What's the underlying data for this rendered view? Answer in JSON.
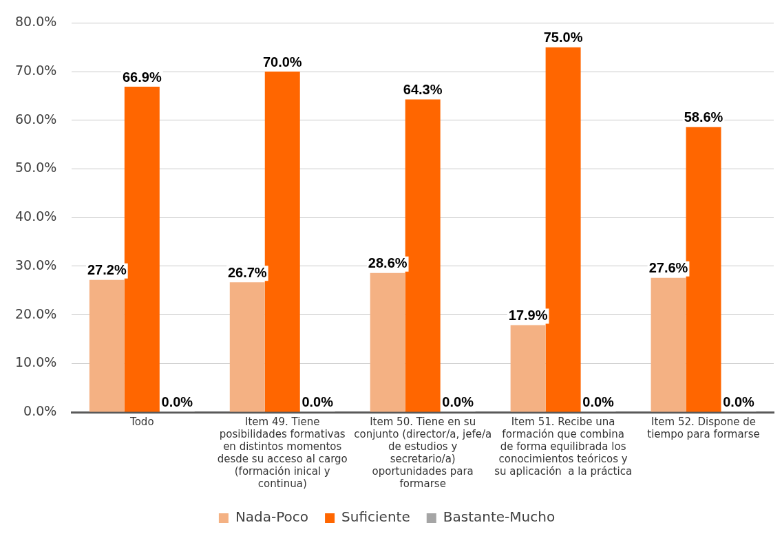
{
  "chart_data": {
    "type": "bar",
    "categories": [
      "Todo",
      "Item 49. Tiene posibilidades formativas en distintos momentos desde su acceso al cargo (formación inical y continua)",
      "Item 50. Tiene en su conjunto (director/a, jefe/a de estudios y secretario/a) oportunidades para formarse",
      "Item 51. Recibe una formación que combina de forma equilibrada los conocimientos teóricos y su aplicación  a la práctica",
      "Item 52. Dispone de tiempo para formarse"
    ],
    "series": [
      {
        "name": "Nada-Poco",
        "color": "#f4b183",
        "values": [
          27.2,
          26.7,
          28.6,
          17.9,
          27.6
        ],
        "value_labels": [
          "27.2%",
          "26.7%",
          "28.6%",
          "17.9%",
          "27.6%"
        ]
      },
      {
        "name": "Suficiente",
        "color": "#ff6600",
        "values": [
          66.9,
          70.0,
          64.3,
          75.0,
          58.6
        ],
        "value_labels": [
          "66.9%",
          "70.0%",
          "64.3%",
          "75.0%",
          "58.6%"
        ]
      },
      {
        "name": "Bastante-Mucho",
        "color": "#a5a5a5",
        "values": [
          0,
          0,
          0,
          0,
          0
        ],
        "value_labels": [
          "0.0%",
          "0.0%",
          "0.0%",
          "0.0%",
          "0.0%"
        ]
      }
    ],
    "ylim": [
      0,
      80
    ],
    "yticks": [
      {
        "value": 0,
        "label": "0.0%"
      },
      {
        "value": 10,
        "label": "10.0%"
      },
      {
        "value": 20,
        "label": "20.0%"
      },
      {
        "value": 30,
        "label": "30.0%"
      },
      {
        "value": 40,
        "label": "40.0%"
      },
      {
        "value": 50,
        "label": "50.0%"
      },
      {
        "value": 60,
        "label": "60.0%"
      },
      {
        "value": 70,
        "label": "70.0%"
      },
      {
        "value": 80,
        "label": "80.0%"
      }
    ],
    "grid": "y",
    "legend": "bottom"
  }
}
